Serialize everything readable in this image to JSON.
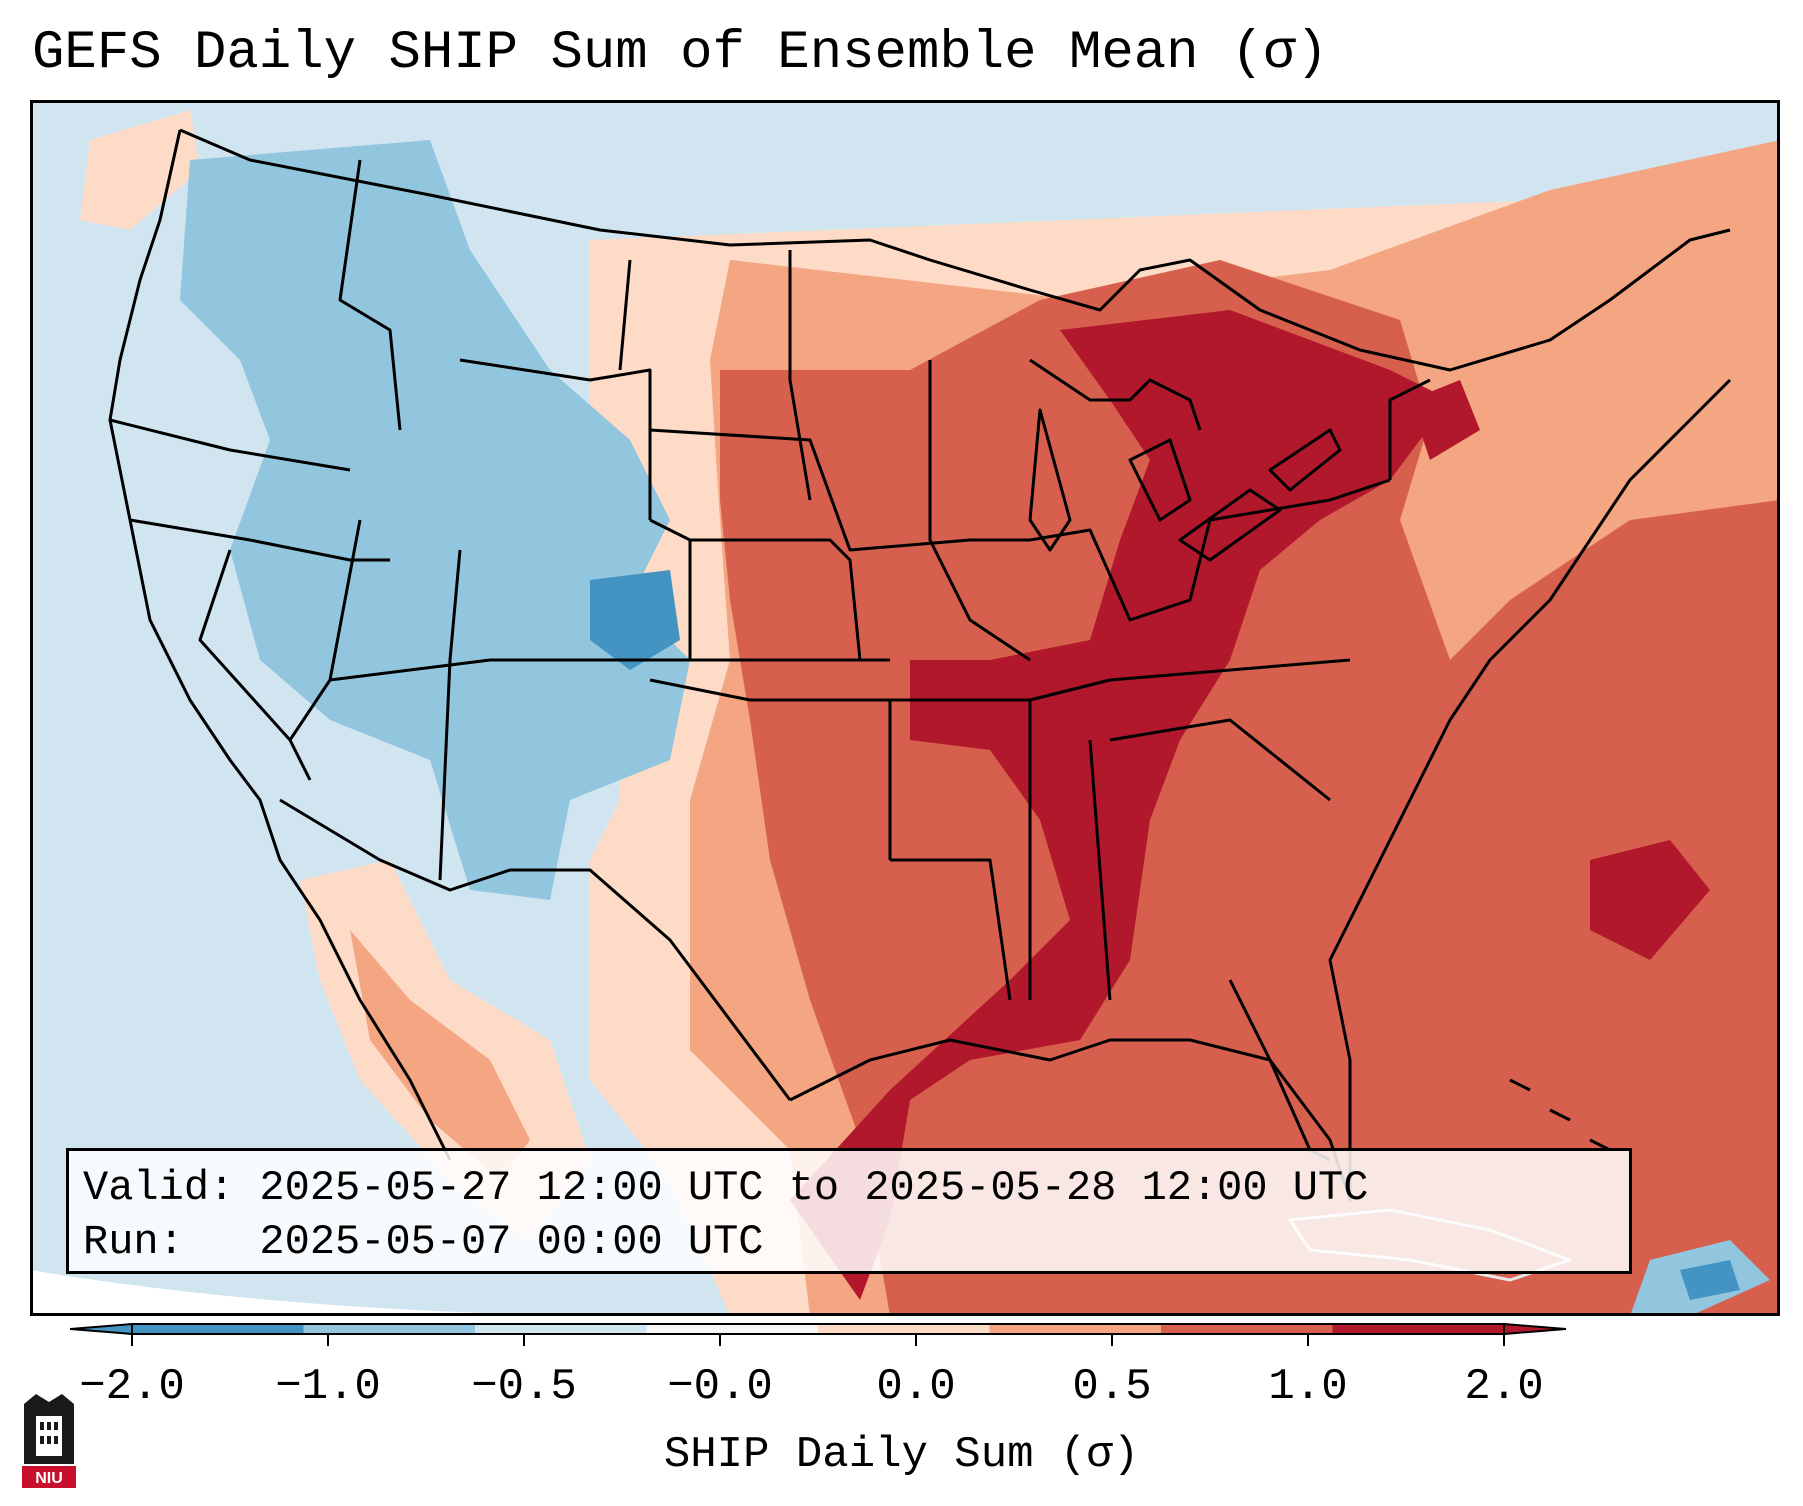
{
  "title": "GEFS Daily SHIP Sum of Ensemble Mean (σ)",
  "valid_line": "Valid: 2025-05-27 12:00 UTC to 2025-05-28 12:00 UTC",
  "run_line": "Run:   2025-05-07 00:00 UTC",
  "colorbar": {
    "label": "SHIP Daily Sum (σ)",
    "ticks": [
      "−2.0",
      "−1.0",
      "−0.5",
      "−0.0",
      "0.0",
      "0.5",
      "1.0",
      "2.0"
    ],
    "colors": [
      "#4393c3",
      "#92c5de",
      "#d1e5f0",
      "#f7f7f7",
      "#fddbc7",
      "#f4a582",
      "#d6604d",
      "#b2182b"
    ],
    "extend": "both"
  },
  "legend_colors": {
    "strong_negative": "#4393c3",
    "negative": "#92c5de",
    "weak_negative": "#d1e5f0",
    "neutral": "#f7f7f7",
    "weak_positive": "#fddbc7",
    "positive": "#f4a582",
    "strong_positive": "#d6604d",
    "very_strong_positive": "#b2182b"
  },
  "logo": {
    "icon": "niu-logo-icon",
    "text": "NIU"
  }
}
